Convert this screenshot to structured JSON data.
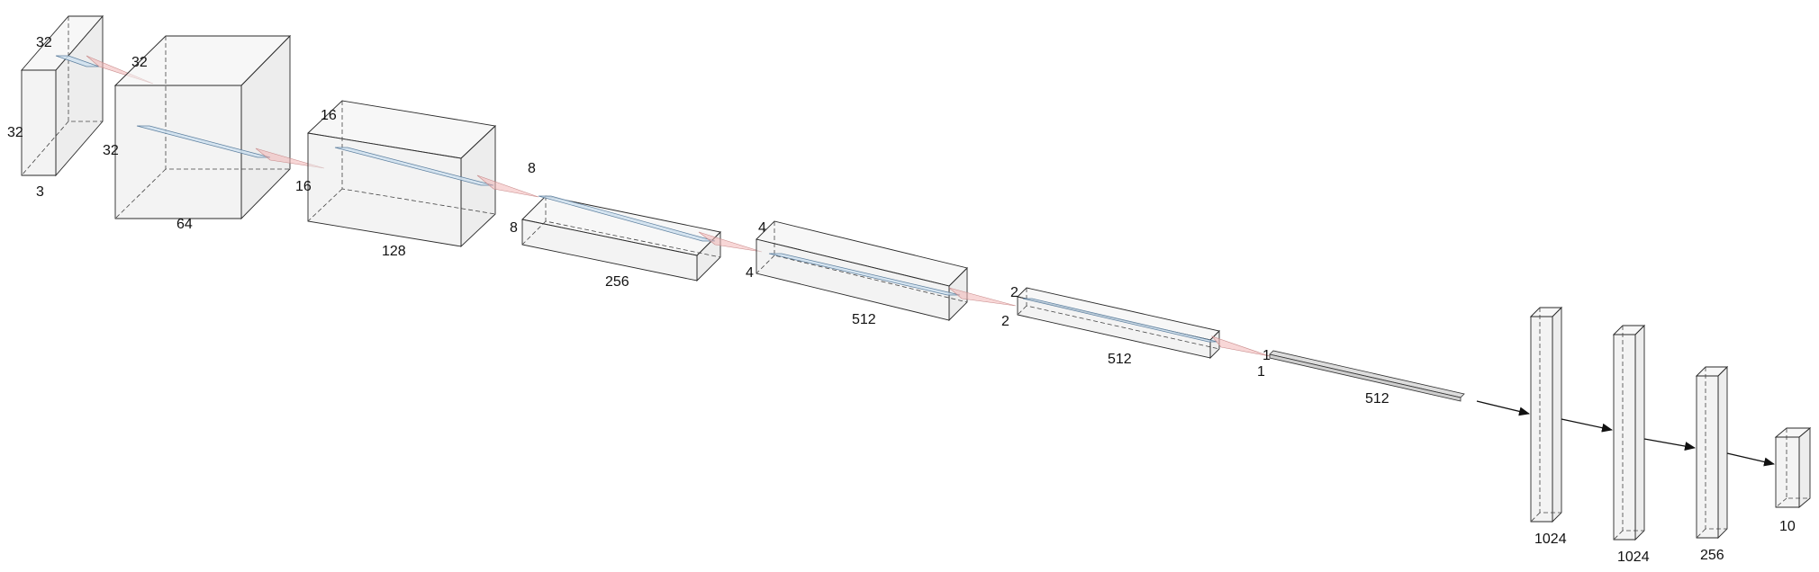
{
  "layers": [
    {
      "type": "conv",
      "height_label": "32",
      "width_label": "32",
      "depth_label": "3"
    },
    {
      "type": "conv",
      "height_label": "32",
      "width_label": "32",
      "depth_label": "64"
    },
    {
      "type": "conv",
      "height_label": "16",
      "width_label": "16",
      "depth_label": "128"
    },
    {
      "type": "conv",
      "height_label": "8",
      "width_label": "8",
      "depth_label": "256"
    },
    {
      "type": "conv",
      "height_label": "4",
      "width_label": "4",
      "depth_label": "512"
    },
    {
      "type": "conv",
      "height_label": "2",
      "width_label": "2",
      "depth_label": "512"
    },
    {
      "type": "flatten",
      "height_label": "1",
      "width_label": "1",
      "depth_label": "512"
    },
    {
      "type": "dense",
      "size_label": "1024"
    },
    {
      "type": "dense",
      "size_label": "1024"
    },
    {
      "type": "dense",
      "size_label": "256"
    },
    {
      "type": "dense",
      "size_label": "10"
    }
  ],
  "colors": {
    "kernel": "#cfe0ef",
    "cone": "#f3b7b7",
    "edge": "#2a2a2a",
    "arrow": "#111111"
  }
}
